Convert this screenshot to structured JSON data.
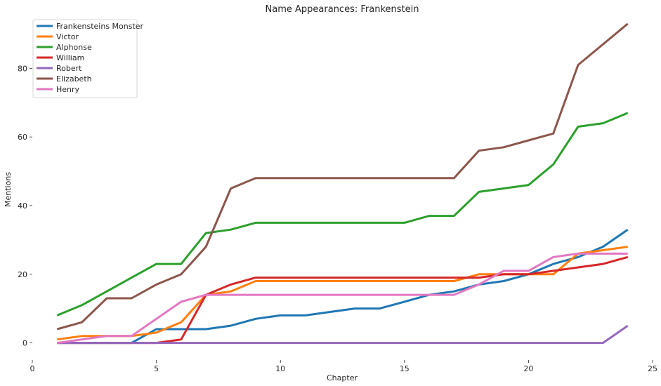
{
  "chart_data": {
    "type": "line",
    "title": "Name Appearances: Frankenstein",
    "xlabel": "Chapter",
    "ylabel": "Mentions",
    "xlim": [
      0,
      25
    ],
    "ylim": [
      -5,
      95
    ],
    "xticks": [
      0,
      5,
      10,
      15,
      20,
      25
    ],
    "yticks": [
      0,
      20,
      40,
      60,
      80
    ],
    "grid": false,
    "legend_position": "top-left",
    "x": [
      1,
      2,
      3,
      4,
      5,
      6,
      7,
      8,
      9,
      10,
      11,
      12,
      13,
      14,
      15,
      16,
      17,
      18,
      19,
      20,
      21,
      22,
      23,
      24
    ],
    "series": [
      {
        "name": "Frankensteins Monster",
        "color": "#1f77b4",
        "values": [
          0,
          0,
          0,
          0,
          4,
          4,
          4,
          5,
          7,
          8,
          8,
          9,
          10,
          10,
          12,
          14,
          15,
          17,
          18,
          20,
          23,
          25,
          28,
          33
        ]
      },
      {
        "name": "Victor",
        "color": "#ff7f0e",
        "values": [
          1,
          2,
          2,
          2,
          3,
          6,
          14,
          15,
          18,
          18,
          18,
          18,
          18,
          18,
          18,
          18,
          18,
          20,
          20,
          20,
          20,
          26,
          27,
          28
        ]
      },
      {
        "name": "Alphonse",
        "color": "#2ca02c",
        "values": [
          8,
          11,
          15,
          19,
          23,
          23,
          32,
          33,
          35,
          35,
          35,
          35,
          35,
          35,
          35,
          37,
          37,
          44,
          45,
          46,
          52,
          63,
          64,
          67
        ]
      },
      {
        "name": "William",
        "color": "#d62728",
        "values": [
          0,
          0,
          0,
          0,
          0,
          1,
          14,
          17,
          19,
          19,
          19,
          19,
          19,
          19,
          19,
          19,
          19,
          19,
          20,
          20,
          21,
          22,
          23,
          25
        ]
      },
      {
        "name": "Robert",
        "color": "#9467bd",
        "values": [
          0,
          0,
          0,
          0,
          0,
          0,
          0,
          0,
          0,
          0,
          0,
          0,
          0,
          0,
          0,
          0,
          0,
          0,
          0,
          0,
          0,
          0,
          0,
          5
        ]
      },
      {
        "name": "Elizabeth",
        "color": "#8c564b",
        "values": [
          4,
          6,
          13,
          13,
          17,
          20,
          28,
          45,
          48,
          48,
          48,
          48,
          48,
          48,
          48,
          48,
          48,
          56,
          57,
          59,
          61,
          81,
          87,
          93
        ]
      },
      {
        "name": "Henry",
        "color": "#e377c2",
        "values": [
          0,
          1,
          2,
          2,
          7,
          12,
          14,
          14,
          14,
          14,
          14,
          14,
          14,
          14,
          14,
          14,
          14,
          17,
          21,
          21,
          25,
          26,
          26,
          26
        ]
      }
    ]
  }
}
